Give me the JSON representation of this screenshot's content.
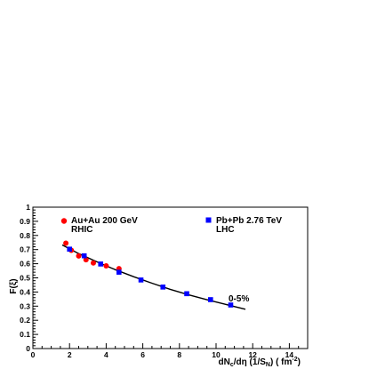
{
  "chart_data": {
    "type": "scatter",
    "xlabel": "dN",
    "xlabel_sub": "c",
    "xlabel_mid": "/d",
    "xlabel_eta": "η",
    "xlabel_paren": " (1/S",
    "xlabel_sub2": "N",
    "xlabel_unit": ") ( fm",
    "xlabel_sup": "-2",
    "xlabel_end": ")",
    "ylabel": "F(ξ)",
    "xlim": [
      0,
      15
    ],
    "ylim": [
      0,
      1
    ],
    "xticks": [
      "0",
      "2",
      "4",
      "6",
      "8",
      "10",
      "12",
      "14"
    ],
    "yticks": [
      "0",
      "0.1",
      "0.2",
      "0.3",
      "0.4",
      "0.5",
      "0.6",
      "0.7",
      "0.8",
      "0.9",
      "1"
    ],
    "annotation": "0-5%",
    "legend": [
      {
        "line1": "Au+Au 200 GeV",
        "line2": "RHIC",
        "marker": "circle",
        "color": "#ff0000"
      },
      {
        "line1": "Pb+Pb 2.76 TeV",
        "line2": "LHC",
        "marker": "square",
        "color": "#0000ff"
      }
    ],
    "series": [
      {
        "marker": "circle",
        "color": "#ff0000",
        "points": [
          [
            1.8,
            0.745
          ],
          [
            2.1,
            0.695
          ],
          [
            2.5,
            0.655
          ],
          [
            2.9,
            0.628
          ],
          [
            3.3,
            0.605
          ],
          [
            4.0,
            0.585
          ],
          [
            4.7,
            0.565
          ]
        ]
      },
      {
        "marker": "square",
        "color": "#0000ff",
        "points": [
          [
            2.0,
            0.703
          ],
          [
            2.8,
            0.656
          ],
          [
            3.7,
            0.598
          ],
          [
            4.7,
            0.54
          ],
          [
            5.9,
            0.485
          ],
          [
            7.1,
            0.435
          ],
          [
            8.4,
            0.388
          ],
          [
            9.7,
            0.346
          ],
          [
            10.8,
            0.308
          ]
        ]
      }
    ],
    "fit_curve": [
      [
        1.6,
        0.733
      ],
      [
        2.5,
        0.672
      ],
      [
        3.5,
        0.613
      ],
      [
        4.5,
        0.558
      ],
      [
        5.5,
        0.508
      ],
      [
        6.5,
        0.462
      ],
      [
        7.5,
        0.419
      ],
      [
        8.5,
        0.38
      ],
      [
        9.5,
        0.345
      ],
      [
        10.5,
        0.313
      ],
      [
        11.6,
        0.278
      ]
    ]
  }
}
